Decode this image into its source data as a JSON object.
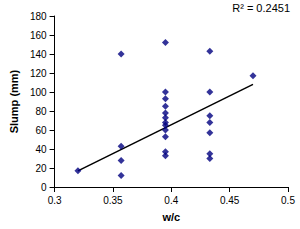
{
  "chart_data": {
    "type": "scatter",
    "x_label": "w/c",
    "y_label": "Slump (mm)",
    "annotation": "R² = 0.2451",
    "x": [
      0.32,
      0.357,
      0.357,
      0.357,
      0.357,
      0.395,
      0.395,
      0.395,
      0.395,
      0.395,
      0.395,
      0.395,
      0.395,
      0.395,
      0.395,
      0.395,
      0.395,
      0.433,
      0.433,
      0.433,
      0.433,
      0.433,
      0.433,
      0.433,
      0.47
    ],
    "values": [
      17,
      140,
      43,
      28,
      12,
      152,
      100,
      93,
      85,
      78,
      73,
      68,
      65,
      60,
      53,
      37,
      33,
      143,
      100,
      75,
      68,
      57,
      35,
      30,
      117
    ],
    "color": "#000080",
    "marker": "diamond",
    "trendline": {
      "x": [
        0.32,
        0.47
      ],
      "values": [
        17,
        108
      ],
      "color": "#000000",
      "line_style": "solid"
    },
    "xlim": [
      0.3,
      0.5
    ],
    "xticks": [
      0.3,
      0.35,
      0.4,
      0.45,
      0.5
    ],
    "ylim": [
      0,
      180
    ],
    "yticks": [
      0,
      20,
      40,
      60,
      80,
      100,
      120,
      140,
      160,
      180
    ],
    "grid": false
  }
}
